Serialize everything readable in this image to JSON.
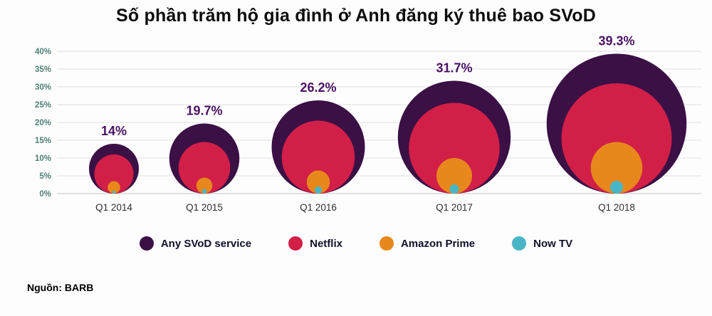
{
  "title": "Số phần trăm hộ gia đình ở Anh đăng ký thuê bao SVoD",
  "source_note": "Nguồn: BARB",
  "chart_data": {
    "type": "bubble",
    "subtype": "nested-bottom-aligned-circles",
    "categories": [
      "Q1 2014",
      "Q1 2015",
      "Q1 2016",
      "Q1 2017",
      "Q1 2018"
    ],
    "ylim": [
      0,
      40
    ],
    "yticks": [
      0,
      5,
      10,
      15,
      20,
      25,
      30,
      35,
      40
    ],
    "ytick_labels": [
      "0%",
      "5%",
      "10%",
      "15%",
      "20%",
      "25%",
      "30%",
      "35%",
      "40%"
    ],
    "grid": true,
    "legend_position": "bottom",
    "value_labels": [
      "14%",
      "19.7%",
      "26.2%",
      "31.7%",
      "39.3%"
    ],
    "series": [
      {
        "name": "Any SVoD service",
        "color": "#3a1045",
        "values": [
          14,
          19.7,
          26.2,
          31.7,
          39.3
        ]
      },
      {
        "name": "Netflix",
        "color": "#d21f47",
        "values": [
          11,
          14.5,
          20.5,
          25.5,
          31
        ]
      },
      {
        "name": "Amazon Prime",
        "color": "#e8881c",
        "values": [
          3.5,
          4.5,
          6.5,
          10,
          14.5
        ]
      },
      {
        "name": "Now TV",
        "color": "#49b6c6",
        "values": [
          0.8,
          1.3,
          2,
          2.6,
          3.6
        ]
      }
    ],
    "layout_hint": "circle diameter encodes percentage; circles for each quarter share a common baseline at 0%"
  },
  "legend": {
    "items": [
      {
        "label": "Any SVoD service",
        "color": "#3a1045"
      },
      {
        "label": "Netflix",
        "color": "#d21f47"
      },
      {
        "label": "Amazon Prime",
        "color": "#e8881c"
      },
      {
        "label": "Now TV",
        "color": "#49b6c6"
      }
    ]
  }
}
